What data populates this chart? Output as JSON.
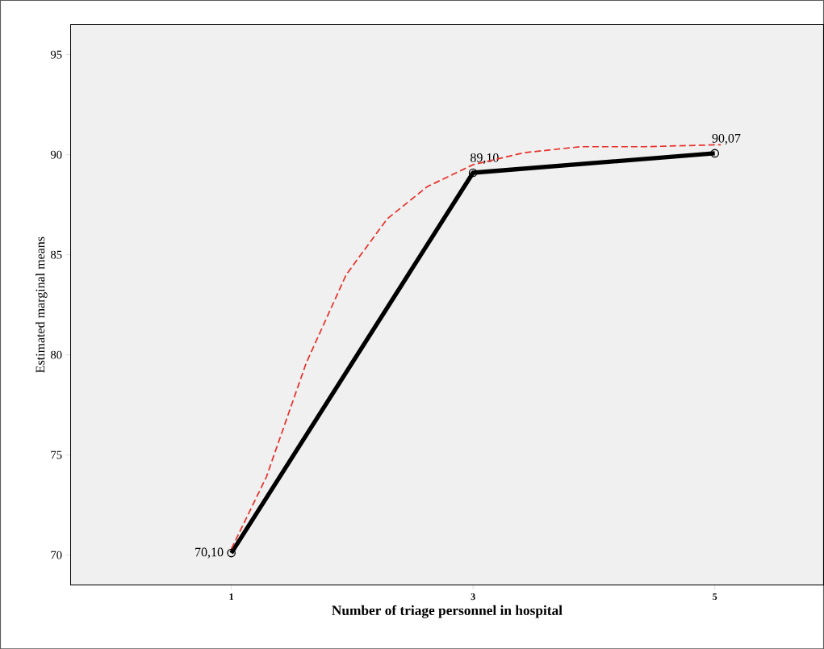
{
  "chart_data": {
    "type": "line",
    "xlabel": "Number of triage personnel in hospital",
    "ylabel": "Estimated marginal means",
    "x": [
      1,
      3,
      5
    ],
    "xlim": [
      -0.33,
      5.9
    ],
    "xticks": [
      1,
      3,
      5
    ],
    "ylim": [
      68.5,
      96.5
    ],
    "yticks": [
      70,
      75,
      80,
      85,
      90,
      95
    ],
    "grid": false,
    "series": [
      {
        "color": "#000000",
        "marker": "circle",
        "line_style": "solid",
        "values": [
          70.1,
          89.1,
          90.07
        ],
        "value_labels": [
          "70,10",
          "89,10",
          "90,07"
        ]
      },
      {
        "color": "#e8302a",
        "marker": "none",
        "line_style": "dashed",
        "x": [
          1,
          1.29,
          1.62,
          1.95,
          2.29,
          2.62,
          3,
          3.42,
          3.89,
          4.42,
          5.05
        ],
        "values": [
          70.3,
          73.9,
          79.6,
          84.0,
          86.8,
          88.4,
          89.5,
          90.1,
          90.4,
          90.4,
          90.5
        ]
      }
    ]
  }
}
